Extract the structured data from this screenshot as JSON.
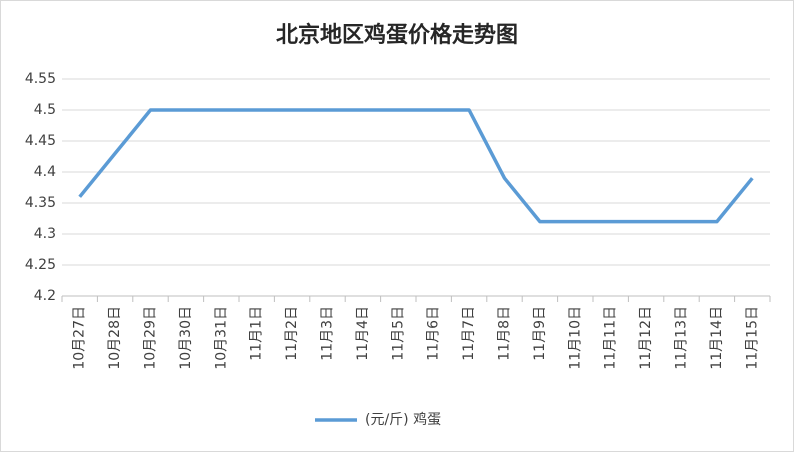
{
  "chart_data": {
    "type": "line",
    "title": "北京地区鸡蛋价格走势图",
    "categories": [
      "10月27日",
      "10月28日",
      "10月29日",
      "10月30日",
      "10月31日",
      "11月1日",
      "11月2日",
      "11月3日",
      "11月4日",
      "11月5日",
      "11月6日",
      "11月7日",
      "11月8日",
      "11月9日",
      "11月10日",
      "11月11日",
      "11月12日",
      "11月13日",
      "11月14日",
      "11月15日"
    ],
    "series": [
      {
        "name": "(元/斤) 鸡蛋",
        "color": "#5b9bd5",
        "values": [
          4.36,
          4.43,
          4.5,
          4.5,
          4.5,
          4.5,
          4.5,
          4.5,
          4.5,
          4.5,
          4.5,
          4.5,
          4.39,
          4.32,
          4.32,
          4.32,
          4.32,
          4.32,
          4.32,
          4.39
        ]
      }
    ],
    "ylim": [
      4.2,
      4.55
    ],
    "yticks": [
      4.2,
      4.25,
      4.3,
      4.35,
      4.4,
      4.45,
      4.5,
      4.55
    ],
    "grid": true,
    "legend": "bottom"
  }
}
